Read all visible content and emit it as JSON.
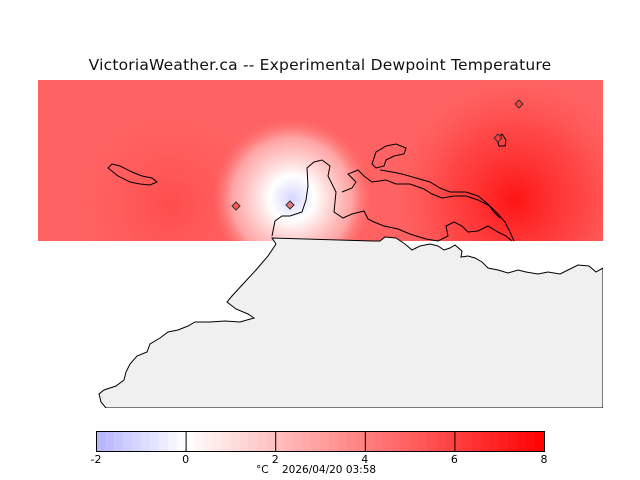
{
  "title": "VictoriaWeather.ca -- Experimental Dewpoint Temperature",
  "colorbar": {
    "ticks": [
      "-2",
      "0",
      "2",
      "4",
      "6",
      "8"
    ],
    "min": -2,
    "max": 8,
    "low_color": "#b3b3ff",
    "mid_color": "#ffffff",
    "high_color": "#ff0000"
  },
  "caption": {
    "unit": "°C",
    "timestamp": "2026/04/20 03:58"
  },
  "map": {
    "land_color": "#f0f0f0",
    "stations": [
      {
        "id": "station-1",
        "dewpoint": 4.9
      },
      {
        "id": "station-2",
        "dewpoint": -0.8
      },
      {
        "id": "station-3",
        "dewpoint": 6.6
      },
      {
        "id": "station-4",
        "dewpoint": 6.8
      }
    ]
  }
}
